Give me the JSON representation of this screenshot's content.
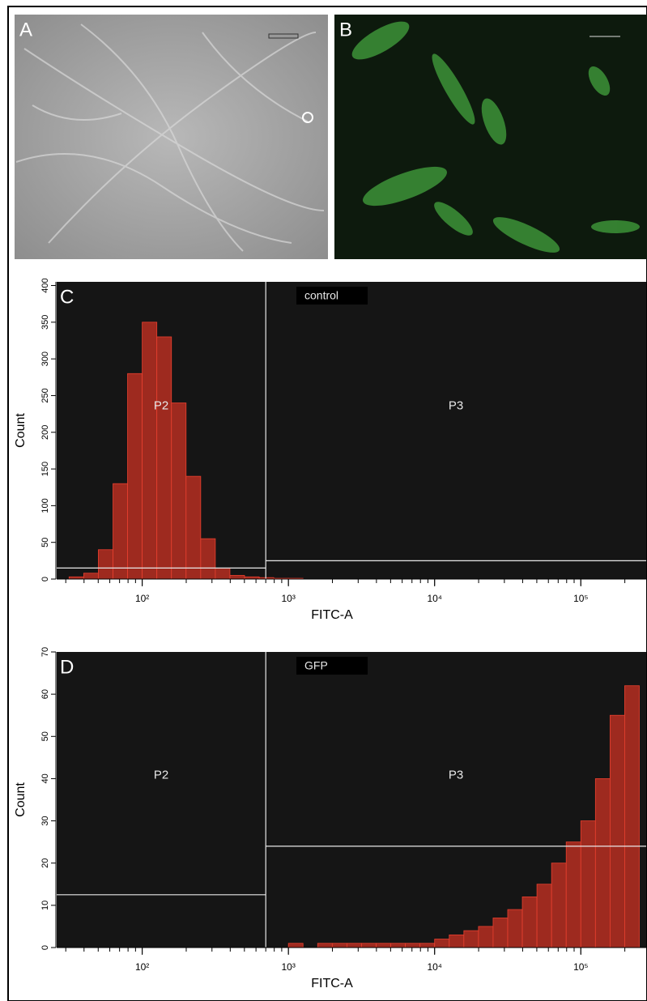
{
  "image_panels": [
    {
      "label": "A"
    },
    {
      "label": "B"
    }
  ],
  "chart_data": [
    {
      "type": "histogram",
      "label": "C",
      "annotation": "control",
      "xlabel": "FITC-A",
      "ylabel": "Count",
      "xscale": "log",
      "color": "#9e2a1f",
      "edge_color": "#e8402f",
      "bins": [
        31.6,
        39.8,
        50.1,
        63.1,
        79.4,
        100,
        125.9,
        158.5,
        199.5,
        251.2,
        316.2,
        398.1,
        501.2,
        631,
        794.3,
        1000,
        1258.9,
        1584.9,
        1995.3,
        2511.9,
        3162.3,
        3981.1,
        5011.9,
        6309.6,
        7943.3,
        10000,
        12589,
        15849,
        19953,
        25119,
        31623,
        39811,
        50119,
        63096,
        79433,
        100000,
        125893,
        158489,
        199526,
        251189
      ],
      "counts": [
        3,
        8,
        40,
        130,
        280,
        350,
        330,
        240,
        140,
        55,
        15,
        5,
        3,
        2,
        1,
        1,
        0,
        0,
        0,
        0,
        0,
        0,
        0,
        0,
        0,
        0,
        0,
        0,
        0,
        0,
        0,
        0,
        0,
        0,
        0,
        0,
        0,
        0,
        0
      ],
      "xlim": [
        26,
        280000
      ],
      "ylim": [
        0,
        405
      ],
      "xticks": [
        {
          "value": 100,
          "label": "10²"
        },
        {
          "value": 1000,
          "label": "10³"
        },
        {
          "value": 10000,
          "label": "10⁴"
        },
        {
          "value": 100000,
          "label": "10⁵"
        }
      ],
      "yticks": [
        0,
        50,
        100,
        150,
        200,
        250,
        300,
        350,
        400
      ],
      "gates": [
        {
          "name": "P2",
          "x_range": [
            26,
            700
          ],
          "level": 15
        },
        {
          "name": "P3",
          "x_range": [
            700,
            280000
          ],
          "level": 25
        }
      ]
    },
    {
      "type": "histogram",
      "label": "D",
      "annotation": "GFP",
      "xlabel": "FITC-A",
      "ylabel": "Count",
      "xscale": "log",
      "color": "#9e2a1f",
      "edge_color": "#e8402f",
      "bins": [
        31.6,
        39.8,
        50.1,
        63.1,
        79.4,
        100,
        125.9,
        158.5,
        199.5,
        251.2,
        316.2,
        398.1,
        501.2,
        631,
        794.3,
        1000,
        1258.9,
        1584.9,
        1995.3,
        2511.9,
        3162.3,
        3981.1,
        5011.9,
        6309.6,
        7943.3,
        10000,
        12589,
        15849,
        19953,
        25119,
        31623,
        39811,
        50119,
        63096,
        79433,
        100000,
        125893,
        158489,
        199526,
        251189
      ],
      "counts": [
        0,
        0,
        0,
        0,
        0,
        0,
        0,
        0,
        0,
        0,
        0,
        0,
        0,
        0,
        0,
        1,
        0,
        1,
        1,
        1,
        1,
        1,
        1,
        1,
        1,
        2,
        3,
        4,
        5,
        7,
        9,
        12,
        15,
        20,
        25,
        30,
        40,
        55,
        62
      ],
      "xlim": [
        26,
        280000
      ],
      "ylim": [
        0,
        70
      ],
      "xticks": [
        {
          "value": 100,
          "label": "10²"
        },
        {
          "value": 1000,
          "label": "10³"
        },
        {
          "value": 10000,
          "label": "10⁴"
        },
        {
          "value": 100000,
          "label": "10⁵"
        }
      ],
      "yticks": [
        0,
        10,
        20,
        30,
        40,
        50,
        60,
        70
      ],
      "gates": [
        {
          "name": "P2",
          "x_range": [
            26,
            700
          ],
          "level": 12.5
        },
        {
          "name": "P3",
          "x_range": [
            700,
            280000
          ],
          "level": 24
        }
      ]
    }
  ]
}
